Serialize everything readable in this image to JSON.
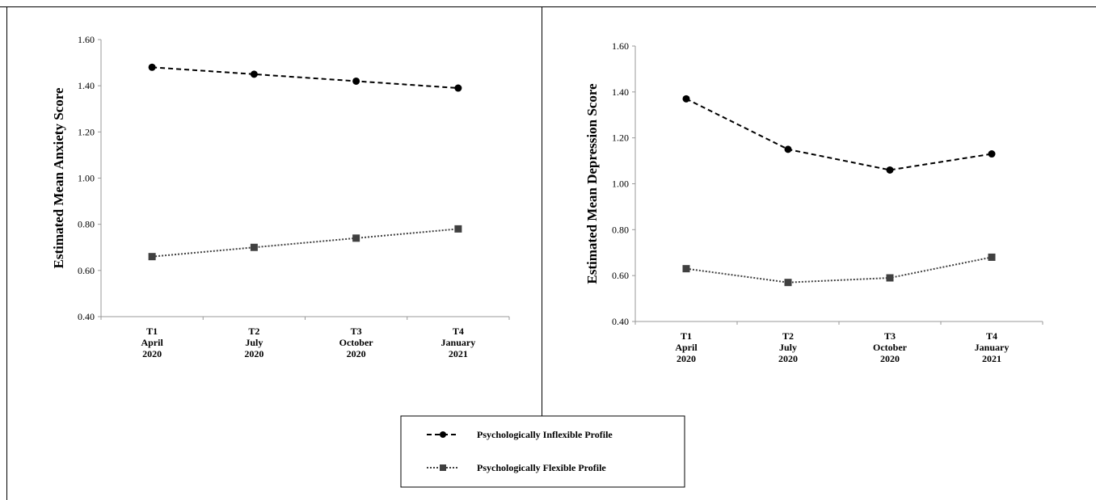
{
  "chart_data": [
    {
      "type": "line",
      "ylabel": "Estimated Mean  Anxiety Score",
      "ylim": [
        0.4,
        1.6
      ],
      "yticks": [
        "0.40",
        "0.60",
        "0.80",
        "1.00",
        "1.20",
        "1.40",
        "1.60"
      ],
      "categories": [
        {
          "line1": "T1",
          "line2": "April",
          "line3": "2020"
        },
        {
          "line1": "T2",
          "line2": "July",
          "line3": "2020"
        },
        {
          "line1": "T3",
          "line2": "October",
          "line3": "2020"
        },
        {
          "line1": "T4",
          "line2": "January",
          "line3": "2021"
        }
      ],
      "series": [
        {
          "name": "Psychologically Inflexible Profile",
          "values": [
            1.48,
            1.45,
            1.42,
            1.39
          ],
          "marker": "circle",
          "dash": "dashed",
          "color": "#000000"
        },
        {
          "name": "Psychologically Flexible Profile",
          "values": [
            0.66,
            0.7,
            0.74,
            0.78
          ],
          "marker": "square",
          "dash": "dotted",
          "color": "#404040"
        }
      ]
    },
    {
      "type": "line",
      "ylabel": "Estimated Mean Depression Score",
      "ylim": [
        0.4,
        1.6
      ],
      "yticks": [
        "0.40",
        "0.60",
        "0.80",
        "1.00",
        "1.20",
        "1.40",
        "1.60"
      ],
      "categories": [
        {
          "line1": "T1",
          "line2": "April",
          "line3": "2020"
        },
        {
          "line1": "T2",
          "line2": "July",
          "line3": "2020"
        },
        {
          "line1": "T3",
          "line2": "October",
          "line3": "2020"
        },
        {
          "line1": "T4",
          "line2": "January",
          "line3": "2021"
        }
      ],
      "series": [
        {
          "name": "Psychologically Inflexible Profile",
          "values": [
            1.37,
            1.15,
            1.06,
            1.13
          ],
          "marker": "circle",
          "dash": "dashed",
          "color": "#000000"
        },
        {
          "name": "Psychologically Flexible Profile",
          "values": [
            0.63,
            0.57,
            0.59,
            0.68
          ],
          "marker": "square",
          "dash": "dotted",
          "color": "#404040"
        }
      ]
    }
  ],
  "legend": {
    "placement": "bottom-center",
    "items": [
      {
        "label": "Psychologically Inflexible Profile",
        "marker": "circle",
        "dash": "dashed"
      },
      {
        "label": "Psychologically Flexible Profile",
        "marker": "square",
        "dash": "dotted"
      }
    ]
  }
}
